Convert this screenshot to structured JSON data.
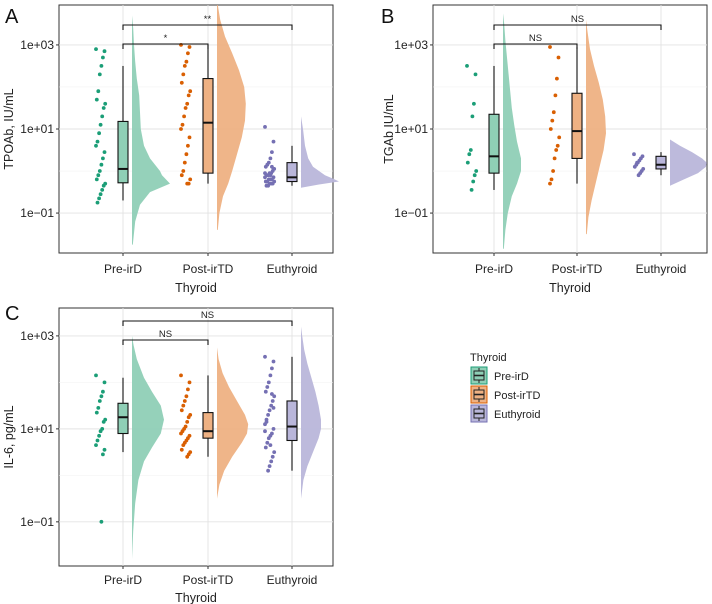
{
  "colors": {
    "pre": "#1b9e77",
    "post": "#d95f02",
    "euth": "#7570b3",
    "pre_fill": "#8fcfb6",
    "post_fill": "#eeb183",
    "euth_fill": "#b9b6da"
  },
  "legend": {
    "title": "Thyroid",
    "items": [
      "Pre-irD",
      "Post-irTD",
      "Euthyroid"
    ]
  },
  "chart_data": [
    {
      "panel_label": "A",
      "type": "raincloud",
      "y_scale": "log10",
      "ylim_log10": [
        -1.95,
        3.95
      ],
      "ylabel": "TPOAb, IU/mL",
      "xlabel": "Thyroid",
      "categories": [
        "Pre-irD",
        "Post-irTD",
        "Euthyroid"
      ],
      "y_ticks": [
        {
          "value_log10": 3,
          "label": "1e+03"
        },
        {
          "value_log10": 1,
          "label": "1e+01"
        },
        {
          "value_log10": -1,
          "label": "1e−01"
        }
      ],
      "boxes": [
        {
          "min": -0.7,
          "q1": -0.28,
          "median": 0.05,
          "q3": 1.18,
          "max": 2.5
        },
        {
          "min": -0.3,
          "q1": -0.05,
          "median": 1.15,
          "q3": 2.2,
          "max": 3.0
        },
        {
          "min": -0.35,
          "q1": -0.25,
          "median": -0.15,
          "q3": 0.2,
          "max": 0.6
        }
      ],
      "densities": [
        {
          "y": [
            -1.75,
            -1.2,
            -0.8,
            -0.5,
            -0.3,
            -0.1,
            0.0,
            0.3,
            0.6,
            1.0,
            1.4,
            1.8,
            2.2,
            2.6,
            3.0,
            3.4,
            3.7
          ],
          "d": [
            0.02,
            0.08,
            0.2,
            0.45,
            0.95,
            0.75,
            0.7,
            0.45,
            0.3,
            0.22,
            0.2,
            0.18,
            0.12,
            0.08,
            0.05,
            0.03,
            0.0
          ]
        },
        {
          "y": [
            -1.4,
            -1.0,
            -0.6,
            -0.3,
            0.0,
            0.4,
            0.8,
            1.2,
            1.6,
            2.0,
            2.4,
            2.8,
            3.2,
            3.6,
            3.95
          ],
          "d": [
            0.02,
            0.06,
            0.15,
            0.28,
            0.38,
            0.5,
            0.62,
            0.7,
            0.72,
            0.68,
            0.55,
            0.38,
            0.2,
            0.08,
            0.02
          ]
        },
        {
          "y": [
            -0.4,
            -0.32,
            -0.25,
            -0.18,
            -0.1,
            0.0,
            0.1,
            0.3,
            0.6,
            1.0,
            1.3
          ],
          "d": [
            0.0,
            0.45,
            0.95,
            0.8,
            0.6,
            0.45,
            0.3,
            0.18,
            0.1,
            0.05,
            0.0
          ]
        }
      ],
      "points": [
        [
          2.9,
          2.85,
          2.7,
          2.5,
          2.3,
          1.9,
          1.7,
          1.6,
          1.5,
          1.3,
          1.1,
          0.9,
          0.7,
          0.6,
          0.45,
          0.3,
          0.15,
          0.0,
          -0.1,
          -0.2,
          -0.3,
          -0.35,
          -0.45,
          -0.55,
          -0.65,
          -0.75
        ],
        [
          3.0,
          2.95,
          2.8,
          2.6,
          2.5,
          2.3,
          2.1,
          1.9,
          1.8,
          1.6,
          1.5,
          1.3,
          1.1,
          1.0,
          0.8,
          0.6,
          0.4,
          0.2,
          0.0,
          -0.1,
          -0.2,
          -0.3,
          -0.3
        ],
        [
          1.05,
          0.7,
          0.45,
          0.3,
          0.2,
          0.15,
          0.1,
          0.05,
          0.0,
          -0.05,
          -0.05,
          -0.1,
          -0.1,
          -0.15,
          -0.15,
          -0.2,
          -0.2,
          -0.2,
          -0.25,
          -0.25,
          -0.25,
          -0.3,
          -0.3,
          -0.3,
          -0.35,
          -0.35,
          -0.05,
          0.05,
          0.1,
          -0.1
        ]
      ],
      "significance": [
        {
          "from": 0,
          "to": 1,
          "label": "*",
          "level": 0
        },
        {
          "from": 0,
          "to": 2,
          "label": "**",
          "level": 1
        }
      ]
    },
    {
      "panel_label": "B",
      "type": "raincloud",
      "y_scale": "log10",
      "ylim_log10": [
        -1.95,
        3.95
      ],
      "ylabel": "TGAb IU/mL",
      "xlabel": "Thyroid",
      "categories": [
        "Pre-irD",
        "Post-irTD",
        "Euthyroid"
      ],
      "y_ticks": [
        {
          "value_log10": 3,
          "label": "1e+03"
        },
        {
          "value_log10": 1,
          "label": "1e+01"
        },
        {
          "value_log10": -1,
          "label": "1e−01"
        }
      ],
      "boxes": [
        {
          "min": -0.45,
          "q1": -0.05,
          "median": 0.35,
          "q3": 1.35,
          "max": 2.5
        },
        {
          "min": -0.3,
          "q1": 0.3,
          "median": 0.95,
          "q3": 1.85,
          "max": 2.95
        },
        {
          "min": -0.1,
          "q1": 0.05,
          "median": 0.15,
          "q3": 0.35,
          "max": 0.45
        }
      ],
      "densities": [
        {
          "y": [
            -1.85,
            -1.4,
            -1.0,
            -0.6,
            -0.3,
            0.0,
            0.3,
            0.7,
            1.1,
            1.5,
            1.9,
            2.3,
            2.7,
            3.1,
            3.5,
            3.75
          ],
          "d": [
            0.02,
            0.06,
            0.12,
            0.22,
            0.35,
            0.45,
            0.45,
            0.35,
            0.28,
            0.22,
            0.18,
            0.14,
            0.1,
            0.06,
            0.03,
            0.0
          ]
        },
        {
          "y": [
            -1.5,
            -1.1,
            -0.7,
            -0.3,
            0.1,
            0.5,
            0.9,
            1.3,
            1.7,
            2.1,
            2.5,
            2.9,
            3.3,
            3.6
          ],
          "d": [
            0.02,
            0.06,
            0.14,
            0.24,
            0.34,
            0.44,
            0.5,
            0.48,
            0.42,
            0.32,
            0.2,
            0.1,
            0.04,
            0.0
          ]
        },
        {
          "y": [
            -0.35,
            -0.2,
            -0.05,
            0.1,
            0.2,
            0.3,
            0.45,
            0.6,
            0.75
          ],
          "d": [
            0.0,
            0.35,
            0.7,
            0.9,
            0.92,
            0.8,
            0.55,
            0.25,
            0.0
          ]
        }
      ],
      "points": [
        [
          2.5,
          2.3,
          1.6,
          1.3,
          0.5,
          0.4,
          0.2,
          0.0,
          -0.1,
          -0.25,
          -0.45
        ],
        [
          2.95,
          2.7,
          2.2,
          1.8,
          1.4,
          1.2,
          1.0,
          0.8,
          0.6,
          0.5,
          0.3,
          0.0,
          -0.2,
          -0.3
        ],
        [
          0.4,
          0.35,
          0.3,
          0.25,
          0.2,
          0.15,
          0.1,
          0.05,
          0.0,
          -0.05,
          -0.1,
          0.2
        ]
      ],
      "significance": [
        {
          "from": 0,
          "to": 1,
          "label": "NS",
          "level": 0
        },
        {
          "from": 0,
          "to": 2,
          "label": "NS",
          "level": 1
        }
      ]
    },
    {
      "panel_label": "C",
      "type": "raincloud",
      "y_scale": "log10",
      "ylim_log10": [
        -1.95,
        3.6
      ],
      "ylabel": "IL-6, pg/mL",
      "xlabel": "Thyroid",
      "categories": [
        "Pre-irD",
        "Post-irTD",
        "Euthyroid"
      ],
      "y_ticks": [
        {
          "value_log10": 3,
          "label": "1e+03"
        },
        {
          "value_log10": 1,
          "label": "1e+01"
        },
        {
          "value_log10": -1,
          "label": "1e−01"
        }
      ],
      "boxes": [
        {
          "min": 0.5,
          "q1": 0.9,
          "median": 1.25,
          "q3": 1.55,
          "max": 2.1
        },
        {
          "min": 0.4,
          "q1": 0.8,
          "median": 0.95,
          "q3": 1.35,
          "max": 2.15
        },
        {
          "min": 0.1,
          "q1": 0.75,
          "median": 1.05,
          "q3": 1.6,
          "max": 2.55
        }
      ],
      "densities": [
        {
          "y": [
            -1.8,
            -1.2,
            -0.6,
            -0.1,
            0.3,
            0.6,
            0.9,
            1.2,
            1.5,
            1.8,
            2.1,
            2.5,
            2.8,
            3.0
          ],
          "d": [
            0.0,
            0.03,
            0.08,
            0.16,
            0.3,
            0.5,
            0.72,
            0.8,
            0.72,
            0.5,
            0.3,
            0.12,
            0.04,
            0.0
          ]
        },
        {
          "y": [
            -0.5,
            -0.2,
            0.1,
            0.4,
            0.7,
            0.9,
            1.1,
            1.3,
            1.6,
            1.9,
            2.2,
            2.5,
            2.75
          ],
          "d": [
            0.0,
            0.06,
            0.18,
            0.38,
            0.62,
            0.75,
            0.78,
            0.7,
            0.5,
            0.3,
            0.14,
            0.04,
            0.0
          ]
        },
        {
          "y": [
            -0.5,
            -0.1,
            0.2,
            0.5,
            0.8,
            1.0,
            1.2,
            1.5,
            1.8,
            2.1,
            2.4,
            2.7,
            3.0,
            3.2
          ],
          "d": [
            0.0,
            0.06,
            0.16,
            0.3,
            0.44,
            0.5,
            0.5,
            0.44,
            0.36,
            0.26,
            0.16,
            0.08,
            0.03,
            0.0
          ]
        }
      ],
      "points": [
        [
          2.15,
          2.0,
          1.8,
          1.7,
          1.6,
          1.45,
          1.35,
          1.2,
          1.15,
          1.0,
          0.95,
          0.85,
          0.75,
          0.65,
          0.55,
          0.45,
          -1.0
        ],
        [
          2.15,
          2.0,
          1.85,
          1.7,
          1.6,
          1.5,
          1.4,
          1.3,
          1.25,
          1.15,
          1.05,
          1.0,
          0.95,
          0.9,
          0.85,
          0.8,
          0.75,
          0.7,
          0.65,
          0.55,
          0.5,
          0.45,
          0.4
        ],
        [
          2.55,
          2.45,
          2.3,
          2.15,
          2.0,
          1.9,
          1.8,
          1.7,
          1.6,
          1.5,
          1.4,
          1.3,
          1.2,
          1.1,
          1.0,
          0.9,
          0.85,
          0.8,
          0.7,
          0.6,
          0.5,
          0.4,
          0.3,
          0.2,
          0.1,
          1.15,
          0.95,
          1.45,
          1.75,
          0.65
        ]
      ],
      "significance": [
        {
          "from": 0,
          "to": 1,
          "label": "NS",
          "level": 0
        },
        {
          "from": 0,
          "to": 2,
          "label": "NS",
          "level": 1
        }
      ]
    }
  ]
}
